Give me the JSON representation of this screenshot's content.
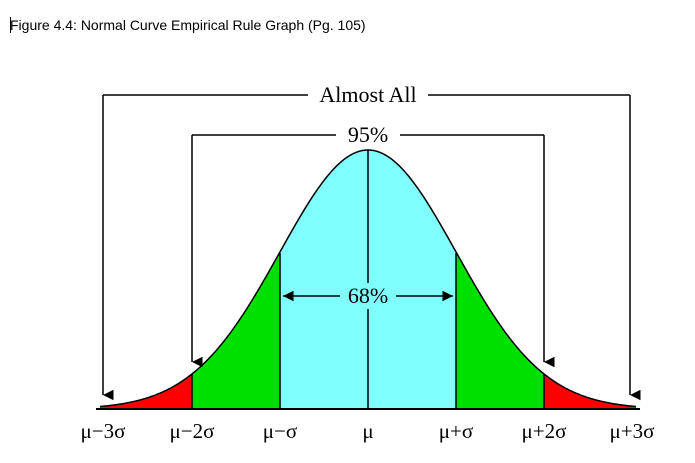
{
  "caption": "Figure 4.4: Normal Curve Empirical Rule Graph (Pg. 105)",
  "labels": {
    "almost_all": "Almost All",
    "p95": "95%",
    "p68": "68%"
  },
  "ticks": [
    "μ−3σ",
    "μ−2σ",
    "μ−σ",
    "μ",
    "μ+σ",
    "μ+2σ",
    "μ+3σ"
  ],
  "colors": {
    "center_band": "#80FFFF",
    "inner_tails": "#00E000",
    "outer_tails": "#FF0000",
    "outline": "#000000"
  }
}
